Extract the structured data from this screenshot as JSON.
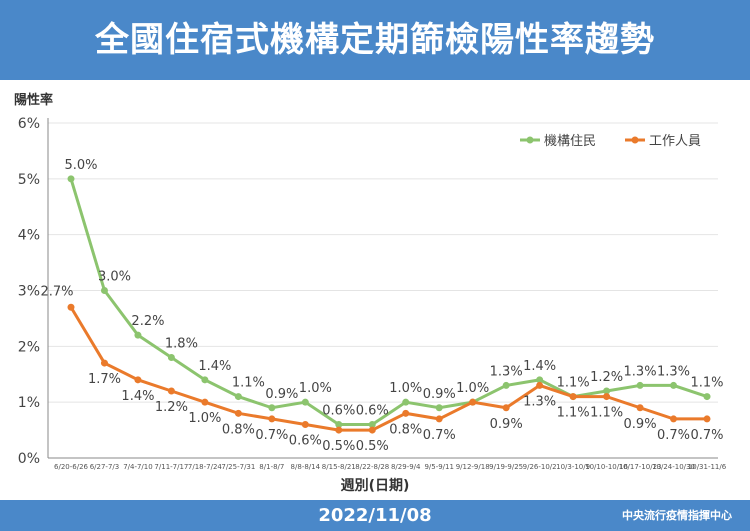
{
  "header": {
    "title": "全國住宿式機構定期篩檢陽性率趨勢"
  },
  "footer": {
    "date": "2022/11/08",
    "source": "中央流行疫情指揮中心"
  },
  "chart_data": {
    "type": "line",
    "ylabel": "陽性率",
    "xlabel": "週別(日期)",
    "ylim": [
      0,
      6
    ],
    "yticks": [
      "0%",
      "1%",
      "2%",
      "3%",
      "4%",
      "5%",
      "6%"
    ],
    "grid": "horizontal",
    "legend_placement": "top-right",
    "categories": [
      "6/20-6/26",
      "6/27-7/3",
      "7/4-7/10",
      "7/11-7/17",
      "7/18-7/24",
      "7/25-7/31",
      "8/1-8/7",
      "8/8-8/14",
      "8/15-8/21",
      "8/22-8/28",
      "8/29-9/4",
      "9/5-9/11",
      "9/12-9/18",
      "9/19-9/25",
      "9/26-10/2",
      "10/3-10/9",
      "10/10-10/16",
      "10/17-10/23",
      "10/24-10/30",
      "10/31-11/6"
    ],
    "series": [
      {
        "name": "機構住民",
        "color": "#8cc46e",
        "values": [
          5.0,
          3.0,
          2.2,
          1.8,
          1.4,
          1.1,
          0.9,
          1.0,
          0.6,
          0.6,
          1.0,
          0.9,
          1.0,
          1.3,
          1.4,
          1.1,
          1.2,
          1.3,
          1.3,
          1.1
        ],
        "labels": [
          "5.0%",
          "3.0%",
          "2.2%",
          "1.8%",
          "1.4%",
          "1.1%",
          "0.9%",
          "1.0%",
          "0.6%",
          "0.6%",
          "1.0%",
          "0.9%",
          "1.0%",
          "1.3%",
          "1.4%",
          "1.1%",
          "1.2%",
          "1.3%",
          "1.3%",
          "1.1%"
        ]
      },
      {
        "name": "工作人員",
        "color": "#ea7a2b",
        "values": [
          2.7,
          1.7,
          1.4,
          1.2,
          1.0,
          0.8,
          0.7,
          0.6,
          0.5,
          0.5,
          0.8,
          0.7,
          1.0,
          0.9,
          1.3,
          1.1,
          1.1,
          0.9,
          0.7,
          0.7
        ],
        "labels": [
          "2.7%",
          "1.7%",
          "1.4%",
          "1.2%",
          "1.0%",
          "0.8%",
          "0.7%",
          "0.6%",
          "0.5%",
          "0.5%",
          "0.8%",
          "0.7%",
          null,
          "0.9%",
          "1.3%",
          "1.1%",
          "1.1%",
          "0.9%",
          "0.7%",
          "0.7%"
        ]
      }
    ]
  }
}
